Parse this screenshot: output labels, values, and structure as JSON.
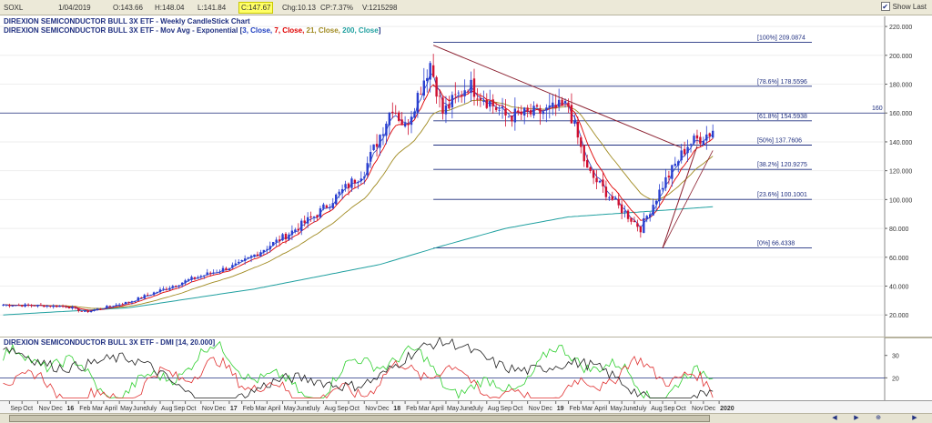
{
  "quote": {
    "symbol": "SOXL",
    "date": "1/04/2019",
    "open": "O:143.66",
    "high": "H:148.04",
    "low": "L:141.84",
    "close": "C:147.67",
    "change": "Chg:10.13",
    "change_pct": "CP:7.37%",
    "volume": "V:1215298",
    "show_last_label": "Show Last"
  },
  "main_title": "DIREXION SEMICONDUCTOR BULL 3X ETF - Weekly CandleStick Chart",
  "mov_avg": {
    "prefix": "DIREXION SEMICONDUCTOR BULL 3X ETF - Mov Avg - Exponential [",
    "p1": "3, Close,",
    "p2": "7, Close,",
    "p3": "21, Close,",
    "p4": "200, Close",
    "suffix": "]",
    "colors": [
      "#2040c0",
      "#e00000",
      "#a08a20",
      "#20a0a0"
    ]
  },
  "dmi_title": "DIREXION SEMICONDUCTOR BULL 3X ETF - DMI [14, 20.000]",
  "colors": {
    "up": "#2a3fd0",
    "down": "#d01030",
    "ema3": "#2040c0",
    "ema7": "#e00000",
    "ema21": "#a08a20",
    "ema200": "#20a0a0",
    "fib": "#203080",
    "trend": "#8b2030",
    "dmi_plus": "#30d030",
    "dmi_minus": "#e03030",
    "adx": "#202020"
  },
  "nav_icons": [
    "nav-prev-icon",
    "nav-next-icon",
    "zoom-icon",
    "scroll-end-icon"
  ],
  "chart_data": {
    "type": "candlestick",
    "title": "DIREXION SEMICONDUCTOR BULL 3X ETF - Weekly CandleStick Chart",
    "y_ticks": [
      "20.000",
      "40.000",
      "60.000",
      "80.000",
      "100.000",
      "120.000",
      "140.000",
      "160.000",
      "180.000",
      "200.000",
      "220.000"
    ],
    "ylim": [
      5,
      227
    ],
    "horizontal_line": {
      "value": 160,
      "label": "160"
    },
    "fib_levels": [
      {
        "label": "[100%] 209.0874",
        "value": 209.0874
      },
      {
        "label": "[78.6%] 178.5596",
        "value": 178.5596
      },
      {
        "label": "[61.8%] 154.5938",
        "value": 154.5938
      },
      {
        "label": "[50%] 137.7606",
        "value": 137.7606
      },
      {
        "label": "[38.2%] 120.9275",
        "value": 120.9275
      },
      {
        "label": "[23.6%] 100.1001",
        "value": 100.1001
      },
      {
        "label": "[0%] 66.4338",
        "value": 66.4338
      }
    ],
    "price_keypoints": [
      [
        0,
        27
      ],
      [
        20,
        26
      ],
      [
        26,
        22
      ],
      [
        40,
        29
      ],
      [
        60,
        45
      ],
      [
        75,
        55
      ],
      [
        90,
        75
      ],
      [
        100,
        90
      ],
      [
        115,
        120
      ],
      [
        124,
        165
      ],
      [
        128,
        150
      ],
      [
        136,
        195
      ],
      [
        140,
        160
      ],
      [
        148,
        180
      ],
      [
        160,
        158
      ],
      [
        170,
        160
      ],
      [
        180,
        165
      ],
      [
        186,
        120
      ],
      [
        196,
        95
      ],
      [
        203,
        80
      ],
      [
        210,
        110
      ],
      [
        218,
        138
      ],
      [
        226,
        147.67
      ]
    ],
    "ema200_keypoints": [
      [
        0,
        20
      ],
      [
        40,
        25
      ],
      [
        80,
        38
      ],
      [
        120,
        55
      ],
      [
        140,
        68
      ],
      [
        160,
        80
      ],
      [
        180,
        88
      ],
      [
        200,
        91
      ],
      [
        226,
        95
      ]
    ],
    "trendline": [
      [
        137,
        207
      ],
      [
        216,
        136
      ]
    ],
    "dmi_y_ticks": [
      "20",
      "30"
    ],
    "dmi_ylim": [
      10,
      38
    ],
    "x_labels": [
      {
        "label": "Sep",
        "week": 2
      },
      {
        "label": "Oct",
        "week": 6
      },
      {
        "label": "Nov",
        "week": 11
      },
      {
        "label": "Dec",
        "week": 15
      },
      {
        "label": "16",
        "week": 20
      },
      {
        "label": "Feb",
        "week": 24
      },
      {
        "label": "Mar",
        "week": 28
      },
      {
        "label": "April",
        "week": 32
      },
      {
        "label": "May",
        "week": 37
      },
      {
        "label": "June",
        "week": 41
      },
      {
        "label": "July",
        "week": 45
      },
      {
        "label": "Aug",
        "week": 50
      },
      {
        "label": "Sep",
        "week": 54
      },
      {
        "label": "Oct",
        "week": 58
      },
      {
        "label": "Nov",
        "week": 63
      },
      {
        "label": "Dec",
        "week": 67
      },
      {
        "label": "17",
        "week": 72
      },
      {
        "label": "Feb",
        "week": 76
      },
      {
        "label": "Mar",
        "week": 80
      },
      {
        "label": "April",
        "week": 84
      },
      {
        "label": "May",
        "week": 89
      },
      {
        "label": "June",
        "week": 93
      },
      {
        "label": "July",
        "week": 97
      },
      {
        "label": "Aug",
        "week": 102
      },
      {
        "label": "Sep",
        "week": 106
      },
      {
        "label": "Oct",
        "week": 110
      },
      {
        "label": "Nov",
        "week": 115
      },
      {
        "label": "Dec",
        "week": 119
      },
      {
        "label": "18",
        "week": 124
      },
      {
        "label": "Feb",
        "week": 128
      },
      {
        "label": "Mar",
        "week": 132
      },
      {
        "label": "April",
        "week": 136
      },
      {
        "label": "May",
        "week": 141
      },
      {
        "label": "June",
        "week": 145
      },
      {
        "label": "July",
        "week": 149
      },
      {
        "label": "Aug",
        "week": 154
      },
      {
        "label": "Sep",
        "week": 158
      },
      {
        "label": "Oct",
        "week": 162
      },
      {
        "label": "Nov",
        "week": 167
      },
      {
        "label": "Dec",
        "week": 171
      },
      {
        "label": "19",
        "week": 176
      },
      {
        "label": "Feb",
        "week": 180
      },
      {
        "label": "Mar",
        "week": 184
      },
      {
        "label": "April",
        "week": 188
      },
      {
        "label": "May",
        "week": 193
      },
      {
        "label": "June",
        "week": 197
      },
      {
        "label": "July",
        "week": 201
      },
      {
        "label": "Aug",
        "week": 206
      },
      {
        "label": "Sep",
        "week": 210
      },
      {
        "label": "Oct",
        "week": 214
      },
      {
        "label": "Nov",
        "week": 219
      },
      {
        "label": "Dec",
        "week": 223
      },
      {
        "label": "2020",
        "week": 228
      }
    ]
  }
}
